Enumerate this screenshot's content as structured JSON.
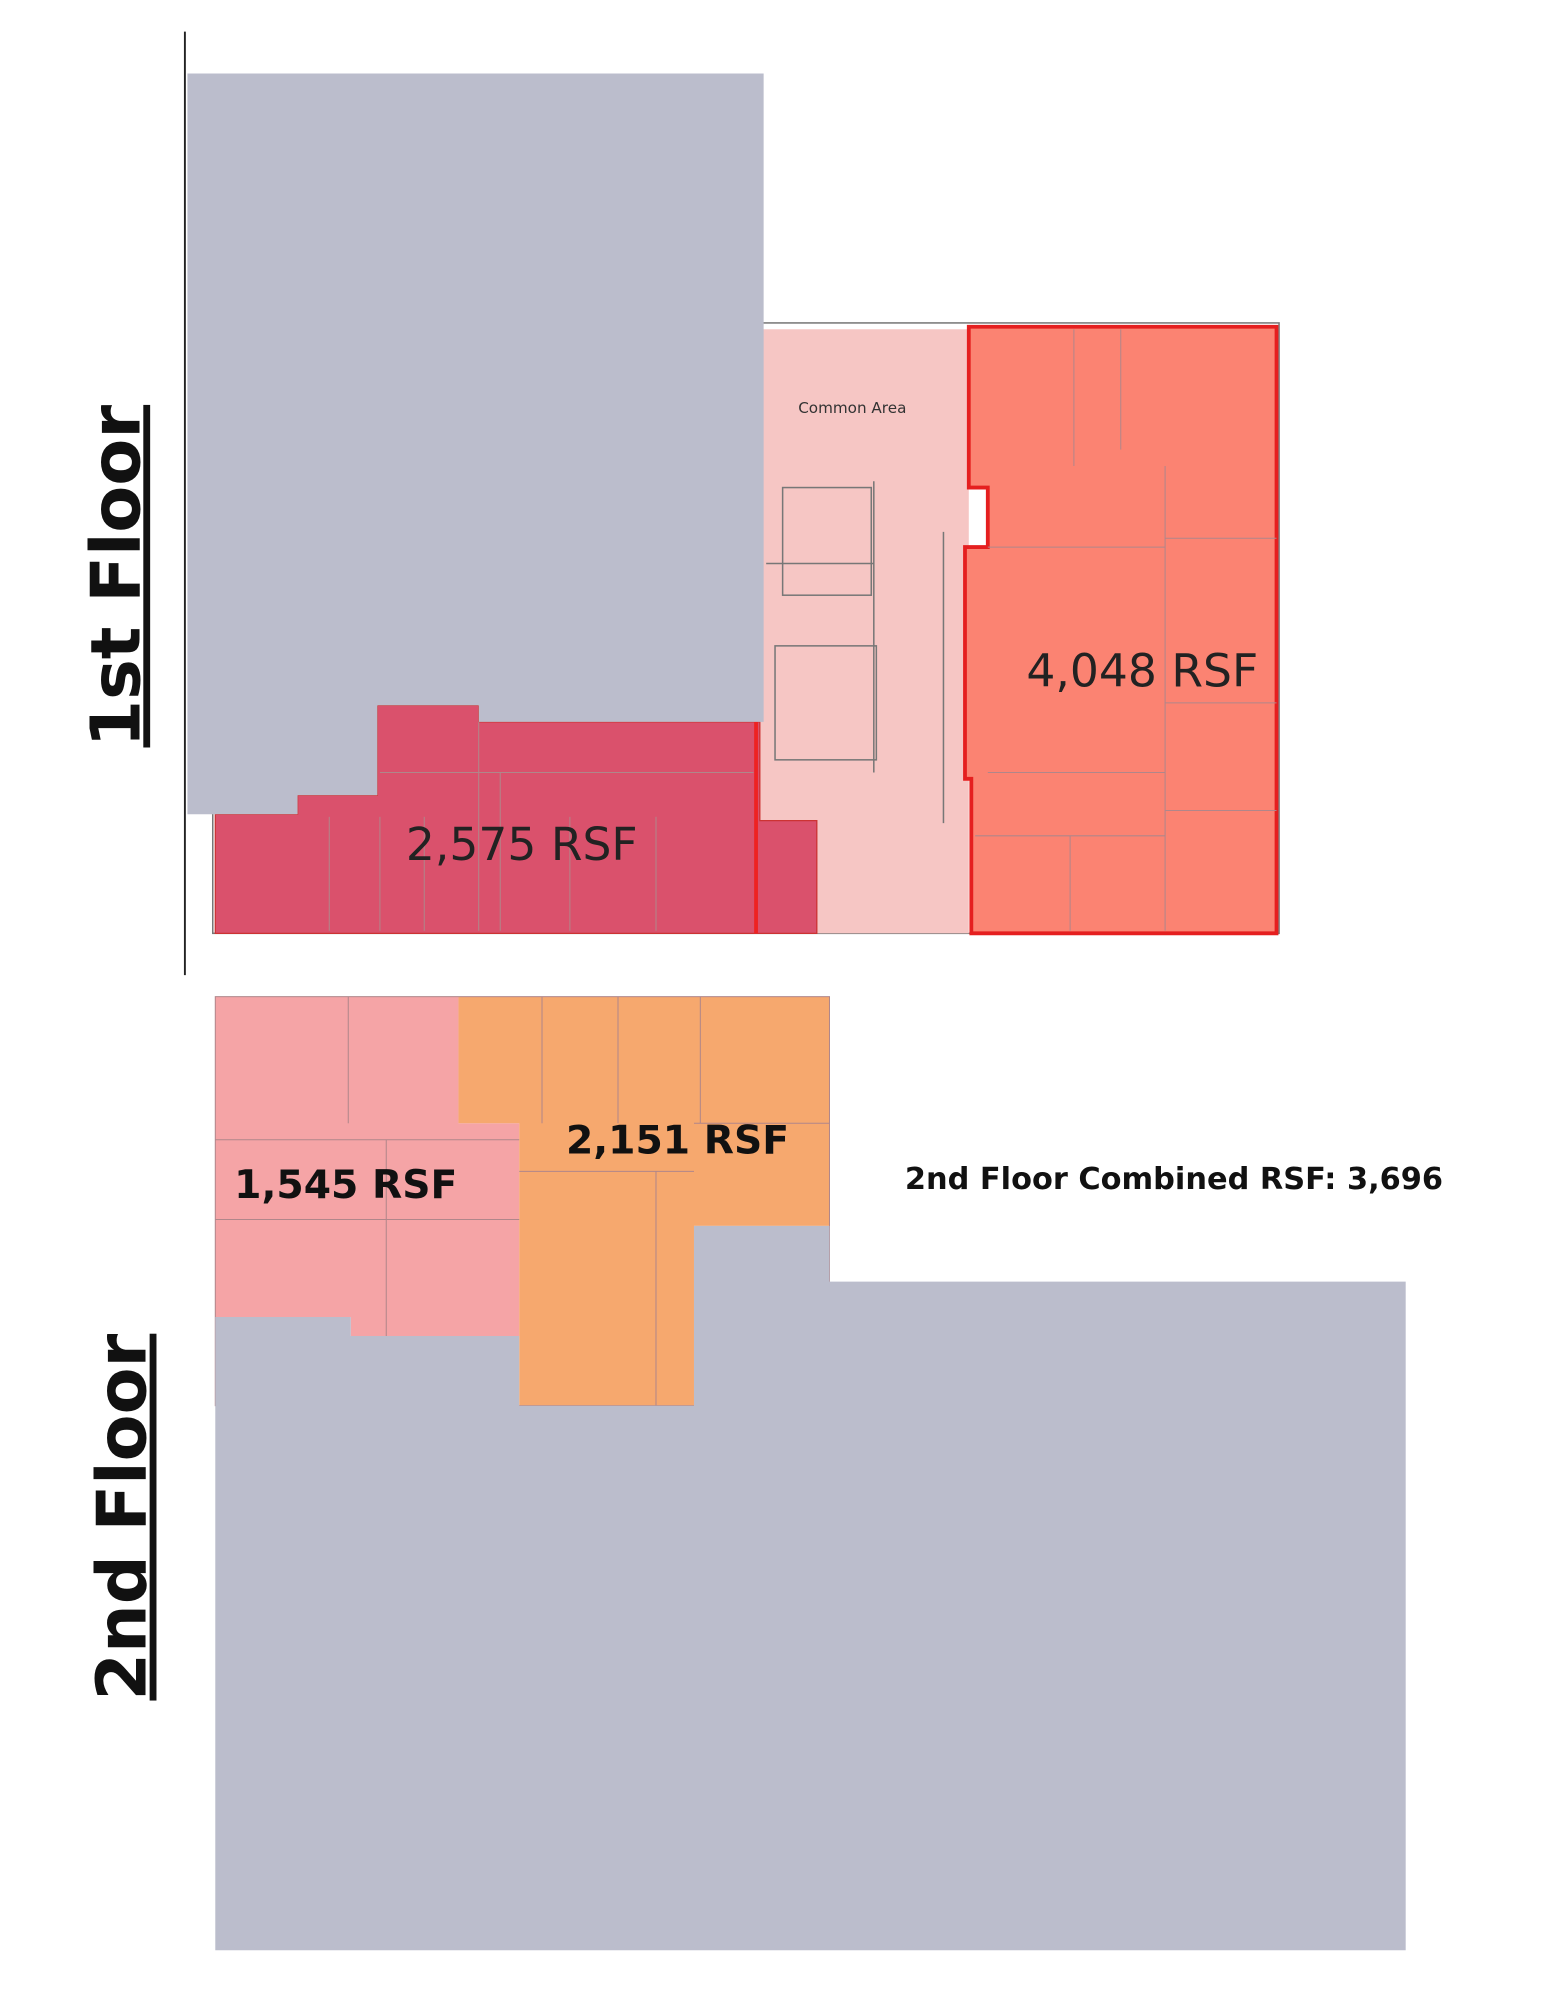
{
  "floor_labels": [
    "1st Floor",
    "2nd Floor"
  ],
  "first_floor": {
    "common_area": "Common Area",
    "spaces": [
      "4,048 RSF",
      "2,575 RSF"
    ]
  },
  "second_floor": {
    "spaces": [
      "1,545 RSF",
      "2,151 RSF"
    ],
    "combined": "2nd Floor Combined RSF: 3,696"
  }
}
